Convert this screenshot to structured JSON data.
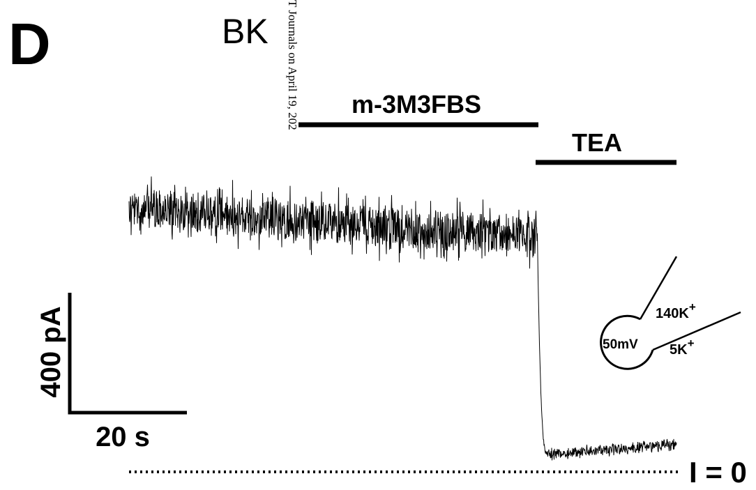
{
  "panel_label": "D",
  "channel": "BK",
  "watermark": "T Journals on April 19, 202",
  "drugs": [
    {
      "label": "m-3M3FBS"
    },
    {
      "label": "TEA"
    }
  ],
  "scale_bar": {
    "current": "400 pA",
    "time": "20 s"
  },
  "baseline_label": "I = 0",
  "schematic": {
    "pipette": {
      "label": "140K",
      "superscript": "+"
    },
    "bath": {
      "label": "5K",
      "superscript": "+"
    },
    "potential": "50mV"
  }
}
